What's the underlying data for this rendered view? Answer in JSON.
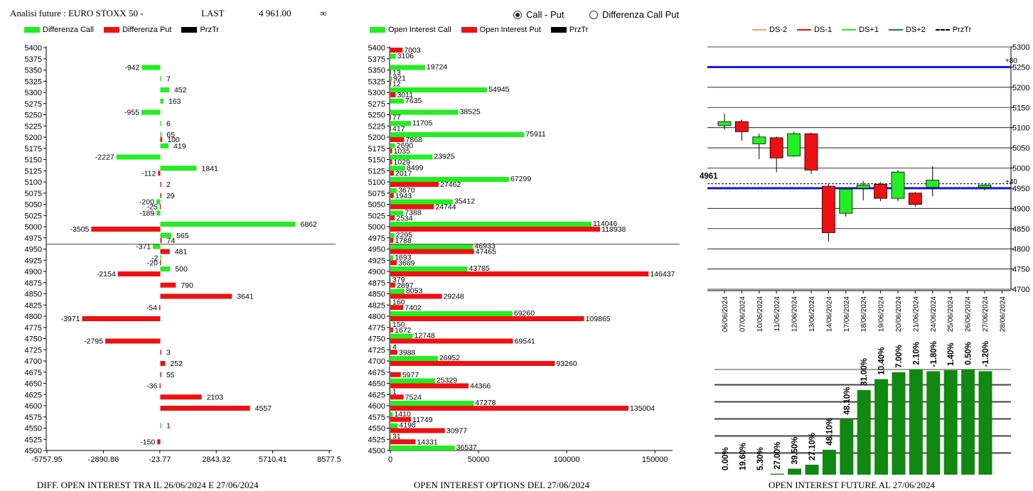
{
  "header": {
    "title": "Analisi future : EURO STOXX 50 -",
    "last_label": "LAST",
    "last_value": "4 961.00",
    "infinity": "∞"
  },
  "radio_options": [
    {
      "label": "Call - Put",
      "selected": true
    },
    {
      "label": "Differenza Call Put",
      "selected": false
    }
  ],
  "legends": {
    "left": [
      {
        "label": "Differenza Call",
        "color": "#22ee22"
      },
      {
        "label": "Differenza Put",
        "color": "#ee1111"
      },
      {
        "label": "PrzTr",
        "color": "#000000"
      }
    ],
    "middle": [
      {
        "label": "Open Interest Call",
        "color": "#22ee22"
      },
      {
        "label": "Open Interest Put",
        "color": "#ee1111"
      },
      {
        "label": "PrzTr",
        "color": "#000000"
      }
    ],
    "right": [
      {
        "label": "DS-2",
        "color": "#f4a070",
        "style": "solid"
      },
      {
        "label": "DS-1",
        "color": "#ee1111",
        "style": "solid"
      },
      {
        "label": "DS+1",
        "color": "#22ee22",
        "style": "solid"
      },
      {
        "label": "DS+2",
        "color": "#118811",
        "style": "solid"
      },
      {
        "label": "PrzTr",
        "color": "#000000",
        "style": "dashed"
      }
    ]
  },
  "footers": {
    "left": "DIFF. OPEN INTEREST TRA IL 26/06/2024 E 27/06/2024",
    "middle": "OPEN INTEREST OPTIONS DEL 27/06/2024",
    "right": "OPEN INTEREST FUTURE AL 27/06/2024"
  },
  "chart_data": [
    {
      "type": "bar",
      "orientation": "horizontal",
      "title": "DIFF. OPEN INTEREST TRA IL 26/06/2024 E 27/06/2024",
      "xlim": [
        -5757.95,
        8577.5
      ],
      "xticks": [
        "-5757.95",
        "-2890.86",
        "-23.77",
        "2843.32",
        "5710.41",
        "8577.5"
      ],
      "price_line": 4961,
      "rows": [
        {
          "strike": 5400,
          "call": null,
          "put": null
        },
        {
          "strike": 5375,
          "call": null,
          "put": null
        },
        {
          "strike": 5350,
          "call": -942,
          "put": null
        },
        {
          "strike": 5325,
          "call": 7,
          "put": null
        },
        {
          "strike": 5300,
          "call": 452,
          "put": null
        },
        {
          "strike": 5275,
          "call": 163,
          "put": null
        },
        {
          "strike": 5250,
          "call": -955,
          "put": null
        },
        {
          "strike": 5225,
          "call": 6,
          "put": null
        },
        {
          "strike": 5200,
          "call": 65,
          "put": 100
        },
        {
          "strike": 5175,
          "call": 419,
          "put": null
        },
        {
          "strike": 5150,
          "call": -2227,
          "put": null
        },
        {
          "strike": 5125,
          "call": 1841,
          "put": -112
        },
        {
          "strike": 5100,
          "call": null,
          "put": 2
        },
        {
          "strike": 5075,
          "call": null,
          "put": 29
        },
        {
          "strike": 5050,
          "call": -200,
          "put": -25
        },
        {
          "strike": 5025,
          "call": -189,
          "put": null
        },
        {
          "strike": 5000,
          "call": 6862,
          "put": -3505
        },
        {
          "strike": 4975,
          "call": 565,
          "put": 74
        },
        {
          "strike": 4950,
          "call": -371,
          "put": 481
        },
        {
          "strike": 4925,
          "call": -2,
          "put": -20
        },
        {
          "strike": 4900,
          "call": 500,
          "put": -2154
        },
        {
          "strike": 4875,
          "call": null,
          "put": 790
        },
        {
          "strike": 4850,
          "call": null,
          "put": 3641
        },
        {
          "strike": 4825,
          "call": null,
          "put": -54
        },
        {
          "strike": 4800,
          "call": null,
          "put": -3971
        },
        {
          "strike": 4775,
          "call": null,
          "put": null
        },
        {
          "strike": 4750,
          "call": null,
          "put": -2795
        },
        {
          "strike": 4725,
          "call": null,
          "put": 3
        },
        {
          "strike": 4700,
          "call": null,
          "put": 252
        },
        {
          "strike": 4675,
          "call": null,
          "put": 55
        },
        {
          "strike": 4650,
          "call": null,
          "put": -36
        },
        {
          "strike": 4625,
          "call": null,
          "put": 2103
        },
        {
          "strike": 4600,
          "call": null,
          "put": 4557
        },
        {
          "strike": 4575,
          "call": null,
          "put": null
        },
        {
          "strike": 4550,
          "call": 1,
          "put": null
        },
        {
          "strike": 4525,
          "call": null,
          "put": -150
        },
        {
          "strike": 4500,
          "call": null,
          "put": null
        }
      ]
    },
    {
      "type": "bar",
      "orientation": "horizontal",
      "title": "OPEN INTEREST OPTIONS DEL 27/06/2024",
      "xlim": [
        0,
        160000
      ],
      "xticks": [
        "0",
        "50000",
        "100000",
        "150000"
      ],
      "price_line": 4961,
      "rows": [
        {
          "strike": 5400,
          "call": null,
          "put": 7003
        },
        {
          "strike": 5375,
          "call": 3106,
          "put": null
        },
        {
          "strike": 5350,
          "call": 19724,
          "put": 13
        },
        {
          "strike": 5325,
          "call": 921,
          "put": 12
        },
        {
          "strike": 5300,
          "call": 54945,
          "put": 3011
        },
        {
          "strike": 5275,
          "call": 7635,
          "put": null
        },
        {
          "strike": 5250,
          "call": 38525,
          "put": 77
        },
        {
          "strike": 5225,
          "call": 11705,
          "put": 417
        },
        {
          "strike": 5200,
          "call": 75911,
          "put": 7868
        },
        {
          "strike": 5175,
          "call": 2690,
          "put": 1035
        },
        {
          "strike": 5150,
          "call": 23925,
          "put": 1029
        },
        {
          "strike": 5125,
          "call": 8499,
          "put": 2017
        },
        {
          "strike": 5100,
          "call": 67299,
          "put": 27462
        },
        {
          "strike": 5075,
          "call": 3670,
          "put": 1943
        },
        {
          "strike": 5050,
          "call": 35412,
          "put": 24744
        },
        {
          "strike": 5025,
          "call": 7388,
          "put": 2534
        },
        {
          "strike": 5000,
          "call": 114046,
          "put": 118938
        },
        {
          "strike": 4975,
          "call": 2295,
          "put": 1788
        },
        {
          "strike": 4950,
          "call": 46933,
          "put": 47465
        },
        {
          "strike": 4925,
          "call": 1693,
          "put": 3689
        },
        {
          "strike": 4900,
          "call": 43785,
          "put": 146437
        },
        {
          "strike": 4875,
          "call": 379,
          "put": 2897
        },
        {
          "strike": 4850,
          "call": 8053,
          "put": 29248
        },
        {
          "strike": 4825,
          "call": 160,
          "put": 7402
        },
        {
          "strike": 4800,
          "call": 69260,
          "put": 109865
        },
        {
          "strike": 4775,
          "call": 150,
          "put": 1672
        },
        {
          "strike": 4750,
          "call": 12748,
          "put": 69541
        },
        {
          "strike": 4725,
          "call": 4,
          "put": 3988
        },
        {
          "strike": 4700,
          "call": 26952,
          "put": 93260
        },
        {
          "strike": 4675,
          "call": null,
          "put": 5977
        },
        {
          "strike": 4650,
          "call": 25329,
          "put": 44366
        },
        {
          "strike": 4625,
          "call": 1,
          "put": 7524
        },
        {
          "strike": 4600,
          "call": 47278,
          "put": 135004
        },
        {
          "strike": 4575,
          "call": 1410,
          "put": 11749
        },
        {
          "strike": 4550,
          "call": 4198,
          "put": 30977
        },
        {
          "strike": 4525,
          "call": 31,
          "put": 14331
        },
        {
          "strike": 4500,
          "call": 36537,
          "put": null
        }
      ]
    },
    {
      "type": "candlestick",
      "ylim": [
        4700,
        5300
      ],
      "yticks": [
        5300,
        5250,
        5200,
        5150,
        5100,
        5050,
        5000,
        4950,
        4900,
        4850,
        4800,
        4750,
        4700
      ],
      "price_label": "4961",
      "price": 4961,
      "blue_lines": [
        {
          "value": 5250,
          "label": "+80"
        },
        {
          "value": 4950,
          "label": "+40"
        }
      ],
      "dates": [
        "06/06/2024",
        "07/06/2024",
        "10/06/2024",
        "11/06/2024",
        "12/06/2024",
        "13/06/2024",
        "14/06/2024",
        "17/06/2024",
        "18/06/2024",
        "19/06/2024",
        "20/06/2024",
        "21/06/2024",
        "24/06/2024",
        "25/06/2024",
        "26/06/2024",
        "27/06/2024",
        "28/06/2024"
      ],
      "candles": [
        {
          "open": 5105,
          "close": 5115,
          "high": 5135,
          "low": 5095
        },
        {
          "open": 5115,
          "close": 5090,
          "high": 5120,
          "low": 5068
        },
        {
          "open": 5060,
          "close": 5077,
          "high": 5085,
          "low": 5022
        },
        {
          "open": 5075,
          "close": 5025,
          "high": 5078,
          "low": 4990
        },
        {
          "open": 5030,
          "close": 5085,
          "high": 5090,
          "low": 5028
        },
        {
          "open": 5085,
          "close": 4995,
          "high": 5088,
          "low": 4985
        },
        {
          "open": 4955,
          "close": 4840,
          "high": 4960,
          "low": 4818
        },
        {
          "open": 4888,
          "close": 4948,
          "high": 4950,
          "low": 4880
        },
        {
          "open": 4950,
          "close": 4958,
          "high": 4968,
          "low": 4920
        },
        {
          "open": 4960,
          "close": 4925,
          "high": 4965,
          "low": 4918
        },
        {
          "open": 4925,
          "close": 4990,
          "high": 4995,
          "low": 4918
        },
        {
          "open": 4938,
          "close": 4910,
          "high": 4940,
          "low": 4905
        },
        {
          "open": 4952,
          "close": 4970,
          "high": 5005,
          "low": 4930
        },
        null,
        null,
        {
          "open": 4952,
          "close": 4958,
          "high": 4960,
          "low": 4945
        },
        null
      ]
    },
    {
      "type": "bar",
      "orientation": "vertical",
      "title": "OPEN INTEREST FUTURE AL 27/06/2024",
      "labels": [
        "0.00%",
        "19.60%",
        "5.30%",
        "27.00%",
        "39.50%",
        "27.10%",
        "48.10%",
        "48.10%",
        "31.00%",
        "10.40%",
        "7.00%",
        "2.10%",
        "-1.80%",
        "1.40%",
        "0.50%",
        "-1.20%"
      ],
      "values": [
        0,
        0,
        0,
        1,
        6,
        10,
        25,
        56,
        85,
        96,
        103,
        106,
        104,
        105,
        106,
        104
      ]
    }
  ]
}
